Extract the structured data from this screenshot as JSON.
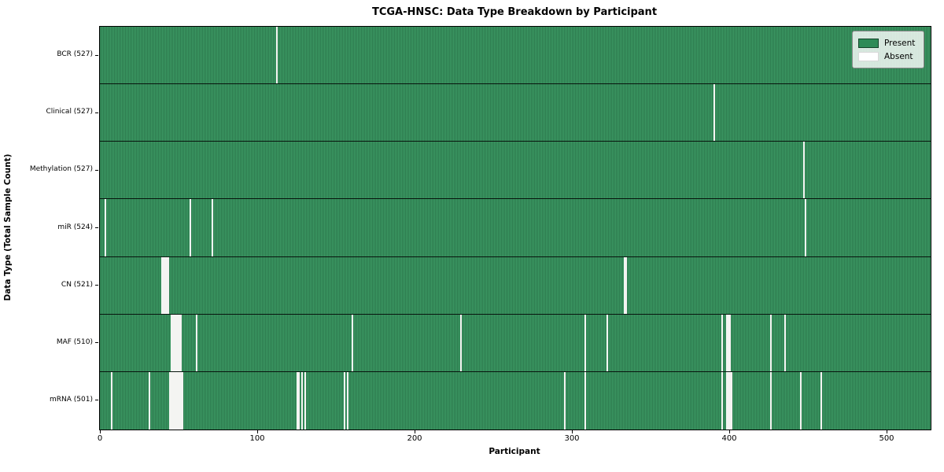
{
  "figure": {
    "title": "TCGA-HNSC: Data Type Breakdown by Participant",
    "xlabel": "Participant",
    "ylabel": "Data Type (Total Sample Count)"
  },
  "legend": {
    "items": [
      {
        "label": "Present",
        "color": "#2e8b57",
        "edge": "#14452a"
      },
      {
        "label": "Absent",
        "color": "#ffffff",
        "edge": "#d9d9d9"
      }
    ]
  },
  "colors": {
    "present_light": "#3c9a64",
    "present_dark": "#1e5b38",
    "absent_line": "#f4f4f2",
    "plot_border": "#000000"
  },
  "chart_data": {
    "type": "heatmap",
    "title": "TCGA-HNSC: Data Type Breakdown by Participant",
    "xlabel": "Participant",
    "ylabel": "Data Type (Total Sample Count)",
    "legend_entries": [
      "Present",
      "Absent"
    ],
    "legend_position": "upper right",
    "grid": false,
    "n_participants": 528,
    "x_ticks": [
      0,
      100,
      200,
      300,
      400,
      500
    ],
    "x_range": [
      0,
      527
    ],
    "rows": [
      {
        "label": "BCR (527)",
        "total_samples": 527,
        "absent_participants": [
          112
        ]
      },
      {
        "label": "Clinical (527)",
        "total_samples": 527,
        "absent_participants": [
          390
        ]
      },
      {
        "label": "Methylation (527)",
        "total_samples": 527,
        "absent_participants": [
          447
        ]
      },
      {
        "label": "miR (524)",
        "total_samples": 524,
        "absent_participants": [
          3,
          57,
          71,
          448
        ]
      },
      {
        "label": "CN (521)",
        "total_samples": 521,
        "absent_participants": [
          39,
          40,
          41,
          42,
          43,
          333,
          334
        ]
      },
      {
        "label": "MAF (510)",
        "total_samples": 510,
        "absent_participants": [
          45,
          46,
          47,
          48,
          49,
          50,
          51,
          61,
          160,
          229,
          308,
          322,
          395,
          398,
          399,
          400,
          426,
          435
        ]
      },
      {
        "label": "mRNA (501)",
        "total_samples": 501,
        "absent_participants": [
          7,
          31,
          44,
          45,
          46,
          47,
          48,
          49,
          50,
          51,
          52,
          125,
          126,
          128,
          130,
          155,
          157,
          295,
          308,
          395,
          398,
          399,
          400,
          401,
          426,
          445,
          458
        ]
      }
    ]
  }
}
